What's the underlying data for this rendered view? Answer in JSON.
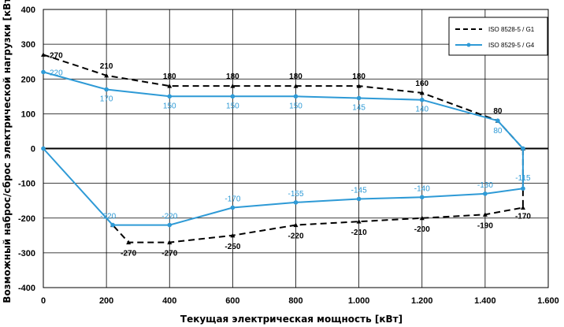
{
  "chart_data": {
    "type": "line",
    "xlabel": "Текущая электрическая мощность [кВт]",
    "ylabel": "Возможный наброс/сброс электрической нагрузки [кВт]",
    "xlim": [
      0,
      1600
    ],
    "ylim": [
      -400,
      400
    ],
    "x_ticks": [
      {
        "value": 0,
        "label": "0"
      },
      {
        "value": 200,
        "label": "200"
      },
      {
        "value": 400,
        "label": "400"
      },
      {
        "value": 600,
        "label": "600"
      },
      {
        "value": 800,
        "label": "800"
      },
      {
        "value": 1000,
        "label": "1.000"
      },
      {
        "value": 1200,
        "label": "1.200"
      },
      {
        "value": 1400,
        "label": "1.400"
      },
      {
        "value": 1600,
        "label": "1.600"
      }
    ],
    "y_ticks": [
      {
        "value": 400,
        "label": "400"
      },
      {
        "value": 300,
        "label": "300"
      },
      {
        "value": 200,
        "label": "200"
      },
      {
        "value": 100,
        "label": "100"
      },
      {
        "value": 0,
        "label": "0"
      },
      {
        "value": -100,
        "label": "-100"
      },
      {
        "value": -200,
        "label": "-200"
      },
      {
        "value": -300,
        "label": "-300"
      },
      {
        "value": -400,
        "label": "-400"
      }
    ],
    "grid": true,
    "legend_position": "top-right",
    "series": [
      {
        "name": "ISO 8528-5 / G1",
        "color": "#000000",
        "style": "dashed",
        "points": [
          {
            "x": 0,
            "y": 270,
            "label": "270"
          },
          {
            "x": 200,
            "y": 210,
            "label": "210"
          },
          {
            "x": 400,
            "y": 180,
            "label": "180"
          },
          {
            "x": 600,
            "y": 180,
            "label": "180"
          },
          {
            "x": 800,
            "y": 180,
            "label": "180"
          },
          {
            "x": 1000,
            "y": 180,
            "label": "180"
          },
          {
            "x": 1200,
            "y": 160,
            "label": "160"
          },
          {
            "x": 1440,
            "y": 80,
            "label": "80"
          },
          {
            "x": 1520,
            "y": 0,
            "label": ""
          },
          {
            "x": 1520,
            "y": -170,
            "label": "-170"
          },
          {
            "x": 1400,
            "y": -190,
            "label": "-190"
          },
          {
            "x": 1200,
            "y": -200,
            "label": "-200"
          },
          {
            "x": 1000,
            "y": -210,
            "label": "-210"
          },
          {
            "x": 800,
            "y": -220,
            "label": "-220"
          },
          {
            "x": 600,
            "y": -250,
            "label": "-250"
          },
          {
            "x": 400,
            "y": -270,
            "label": "-270"
          },
          {
            "x": 270,
            "y": -270,
            "label": "-270"
          },
          {
            "x": 220,
            "y": -220,
            "label": ""
          }
        ]
      },
      {
        "name": "ISO 8529-5 / G4",
        "color": "#2e9ad6",
        "style": "solid",
        "points": [
          {
            "x": 0,
            "y": 220,
            "label": "220"
          },
          {
            "x": 200,
            "y": 170,
            "label": "170"
          },
          {
            "x": 400,
            "y": 150,
            "label": "150"
          },
          {
            "x": 600,
            "y": 150,
            "label": "150"
          },
          {
            "x": 800,
            "y": 150,
            "label": "150"
          },
          {
            "x": 1000,
            "y": 145,
            "label": "145"
          },
          {
            "x": 1200,
            "y": 140,
            "label": "140"
          },
          {
            "x": 1440,
            "y": 80,
            "label": "80"
          },
          {
            "x": 1520,
            "y": 0,
            "label": ""
          },
          {
            "x": 1520,
            "y": -115,
            "label": "-115"
          },
          {
            "x": 1400,
            "y": -130,
            "label": "-130"
          },
          {
            "x": 1200,
            "y": -140,
            "label": "-140"
          },
          {
            "x": 1000,
            "y": -145,
            "label": "-145"
          },
          {
            "x": 800,
            "y": -155,
            "label": "-155"
          },
          {
            "x": 600,
            "y": -170,
            "label": "-170"
          },
          {
            "x": 400,
            "y": -220,
            "label": "-220"
          },
          {
            "x": 220,
            "y": -220,
            "label": "-220"
          },
          {
            "x": 0,
            "y": 0,
            "label": ""
          }
        ]
      }
    ]
  }
}
